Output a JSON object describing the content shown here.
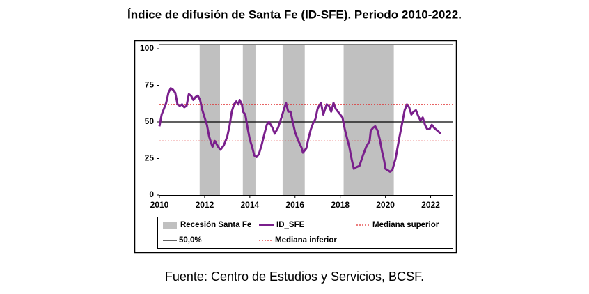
{
  "chart_data": {
    "type": "line",
    "title": "Índice de difusión de Santa Fe (ID-SFE). Periodo 2010-2022.",
    "source": "Fuente: Centro de Estudios y Servicios, BCSF.",
    "xlim": [
      2010,
      2023
    ],
    "xticks": [
      2010,
      2012,
      2014,
      2016,
      2018,
      2020,
      2022
    ],
    "ylim": [
      0,
      100
    ],
    "yticks": [
      0,
      25,
      50,
      75,
      100
    ],
    "x": [
      2010.0,
      2010.1,
      2010.2,
      2010.3,
      2010.4,
      2010.5,
      2010.6,
      2010.7,
      2010.8,
      2010.9,
      2011.0,
      2011.1,
      2011.2,
      2011.3,
      2011.4,
      2011.5,
      2011.6,
      2011.7,
      2011.8,
      2011.9,
      2012.0,
      2012.1,
      2012.2,
      2012.3,
      2012.35,
      2012.45,
      2012.6,
      2012.7,
      2012.85,
      2013.0,
      2013.1,
      2013.2,
      2013.3,
      2013.4,
      2013.5,
      2013.55,
      2013.65,
      2013.7,
      2013.8,
      2013.9,
      2014.0,
      2014.1,
      2014.2,
      2014.3,
      2014.4,
      2014.5,
      2014.65,
      2014.75,
      2014.85,
      2015.0,
      2015.1,
      2015.25,
      2015.4,
      2015.5,
      2015.6,
      2015.7,
      2015.8,
      2015.9,
      2016.0,
      2016.15,
      2016.3,
      2016.35,
      2016.5,
      2016.6,
      2016.7,
      2016.8,
      2016.9,
      2017.0,
      2017.1,
      2017.15,
      2017.25,
      2017.4,
      2017.5,
      2017.6,
      2017.7,
      2017.8,
      2017.9,
      2018.0,
      2018.1,
      2018.2,
      2018.3,
      2018.4,
      2018.5,
      2018.6,
      2018.7,
      2018.85,
      2019.0,
      2019.15,
      2019.3,
      2019.35,
      2019.45,
      2019.55,
      2019.65,
      2019.75,
      2019.85,
      2019.95,
      2020.0,
      2020.1,
      2020.2,
      2020.3,
      2020.45,
      2020.6,
      2020.75,
      2020.85,
      2020.95,
      2021.05,
      2021.15,
      2021.25,
      2021.35,
      2021.45,
      2021.55,
      2021.65,
      2021.75,
      2021.85,
      2021.95,
      2022.05,
      2022.15,
      2022.3,
      2022.45
    ],
    "series": [
      {
        "name": "ID_SFE",
        "color": "#7a1f8c",
        "values": [
          47,
          55,
          59,
          63,
          70,
          73,
          72,
          70,
          62,
          61,
          62,
          60,
          61,
          69,
          68,
          65,
          67,
          68,
          65,
          58,
          53,
          48,
          40,
          35,
          33,
          37,
          33,
          31,
          34,
          40,
          47,
          57,
          62,
          64,
          62,
          65,
          62,
          57,
          55,
          46,
          38,
          33,
          27,
          26,
          28,
          33,
          42,
          48,
          50,
          46,
          42,
          46,
          53,
          58,
          63,
          57,
          57,
          50,
          43,
          37,
          32,
          29,
          32,
          39,
          45,
          49,
          52,
          59,
          62,
          63,
          55,
          62,
          61,
          57,
          63,
          59,
          57,
          55,
          53,
          45,
          39,
          33,
          25,
          18,
          19,
          20,
          27,
          33,
          37,
          44,
          46,
          47,
          44,
          38,
          30,
          23,
          18,
          17,
          16,
          17,
          25,
          38,
          50,
          58,
          62,
          60,
          55,
          57,
          58,
          54,
          51,
          53,
          48,
          45,
          45,
          48,
          46,
          44,
          42
        ]
      }
    ],
    "recessions": {
      "name": "Recesión Santa Fe",
      "color": "#c0c0c0",
      "periods": [
        [
          2011.78,
          2012.68
        ],
        [
          2013.69,
          2014.25
        ],
        [
          2015.45,
          2016.43
        ],
        [
          2018.15,
          2020.37
        ]
      ]
    },
    "reference_lines": [
      {
        "name": "Mediana superior",
        "value": 62,
        "color": "#e03030",
        "style": "dotted"
      },
      {
        "name": "50,0%",
        "value": 50,
        "color": "#000000",
        "style": "solid"
      },
      {
        "name": "Mediana inferior",
        "value": 37,
        "color": "#e03030",
        "style": "dotted"
      }
    ]
  }
}
